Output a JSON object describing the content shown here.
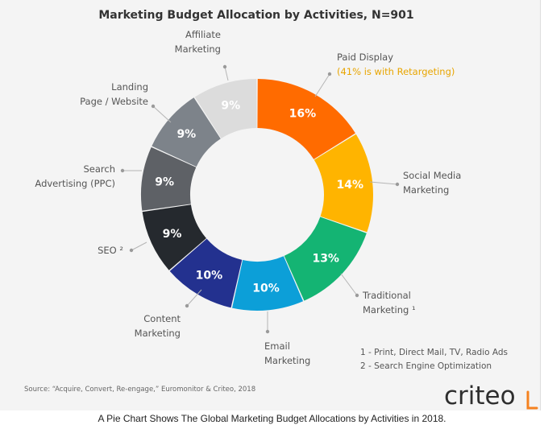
{
  "chart_data": {
    "type": "pie",
    "donut": true,
    "title": "Marketing Budget Allocation by Activities, N=901",
    "slices": [
      {
        "value": 16,
        "value_label": "16%",
        "label": [
          "Paid Display"
        ],
        "sublabel": "(41% is with Retargeting)",
        "color": "#ff6b00"
      },
      {
        "value": 14,
        "value_label": "14%",
        "label": [
          "Social Media",
          "Marketing"
        ],
        "color": "#ffb400"
      },
      {
        "value": 13,
        "value_label": "13%",
        "label": [
          "Traditional",
          "Marketing ¹"
        ],
        "color": "#14b473"
      },
      {
        "value": 10,
        "value_label": "10%",
        "label": [
          "Email",
          "Marketing"
        ],
        "color": "#0c9fd8"
      },
      {
        "value": 10,
        "value_label": "10%",
        "label": [
          "Content",
          "Marketing"
        ],
        "color": "#23318f"
      },
      {
        "value": 9,
        "value_label": "9%",
        "label": [
          "SEO ²"
        ],
        "color": "#25292e"
      },
      {
        "value": 9,
        "value_label": "9%",
        "label": [
          "Search",
          "Advertising (PPC)"
        ],
        "color": "#5e6166"
      },
      {
        "value": 9,
        "value_label": "9%",
        "label": [
          "Landing",
          "Page / Website"
        ],
        "color": "#7d838a"
      },
      {
        "value": 9,
        "value_label": "9%",
        "label": [
          "Affiliate",
          "Marketing"
        ],
        "color": "#dcdcdc"
      }
    ],
    "footnotes": [
      "1 - Print, Direct Mail, TV, Radio Ads",
      "2 - Search Engine Optimization"
    ],
    "source": "Source: “Acquire, Convert, Re-engage,” Euromonitor & Criteo, 2018"
  },
  "brand": {
    "name": "criteo",
    "accent_color": "#f58220"
  },
  "caption": "A Pie Chart Shows The Global Marketing Budget Allocations by Activities in 2018."
}
